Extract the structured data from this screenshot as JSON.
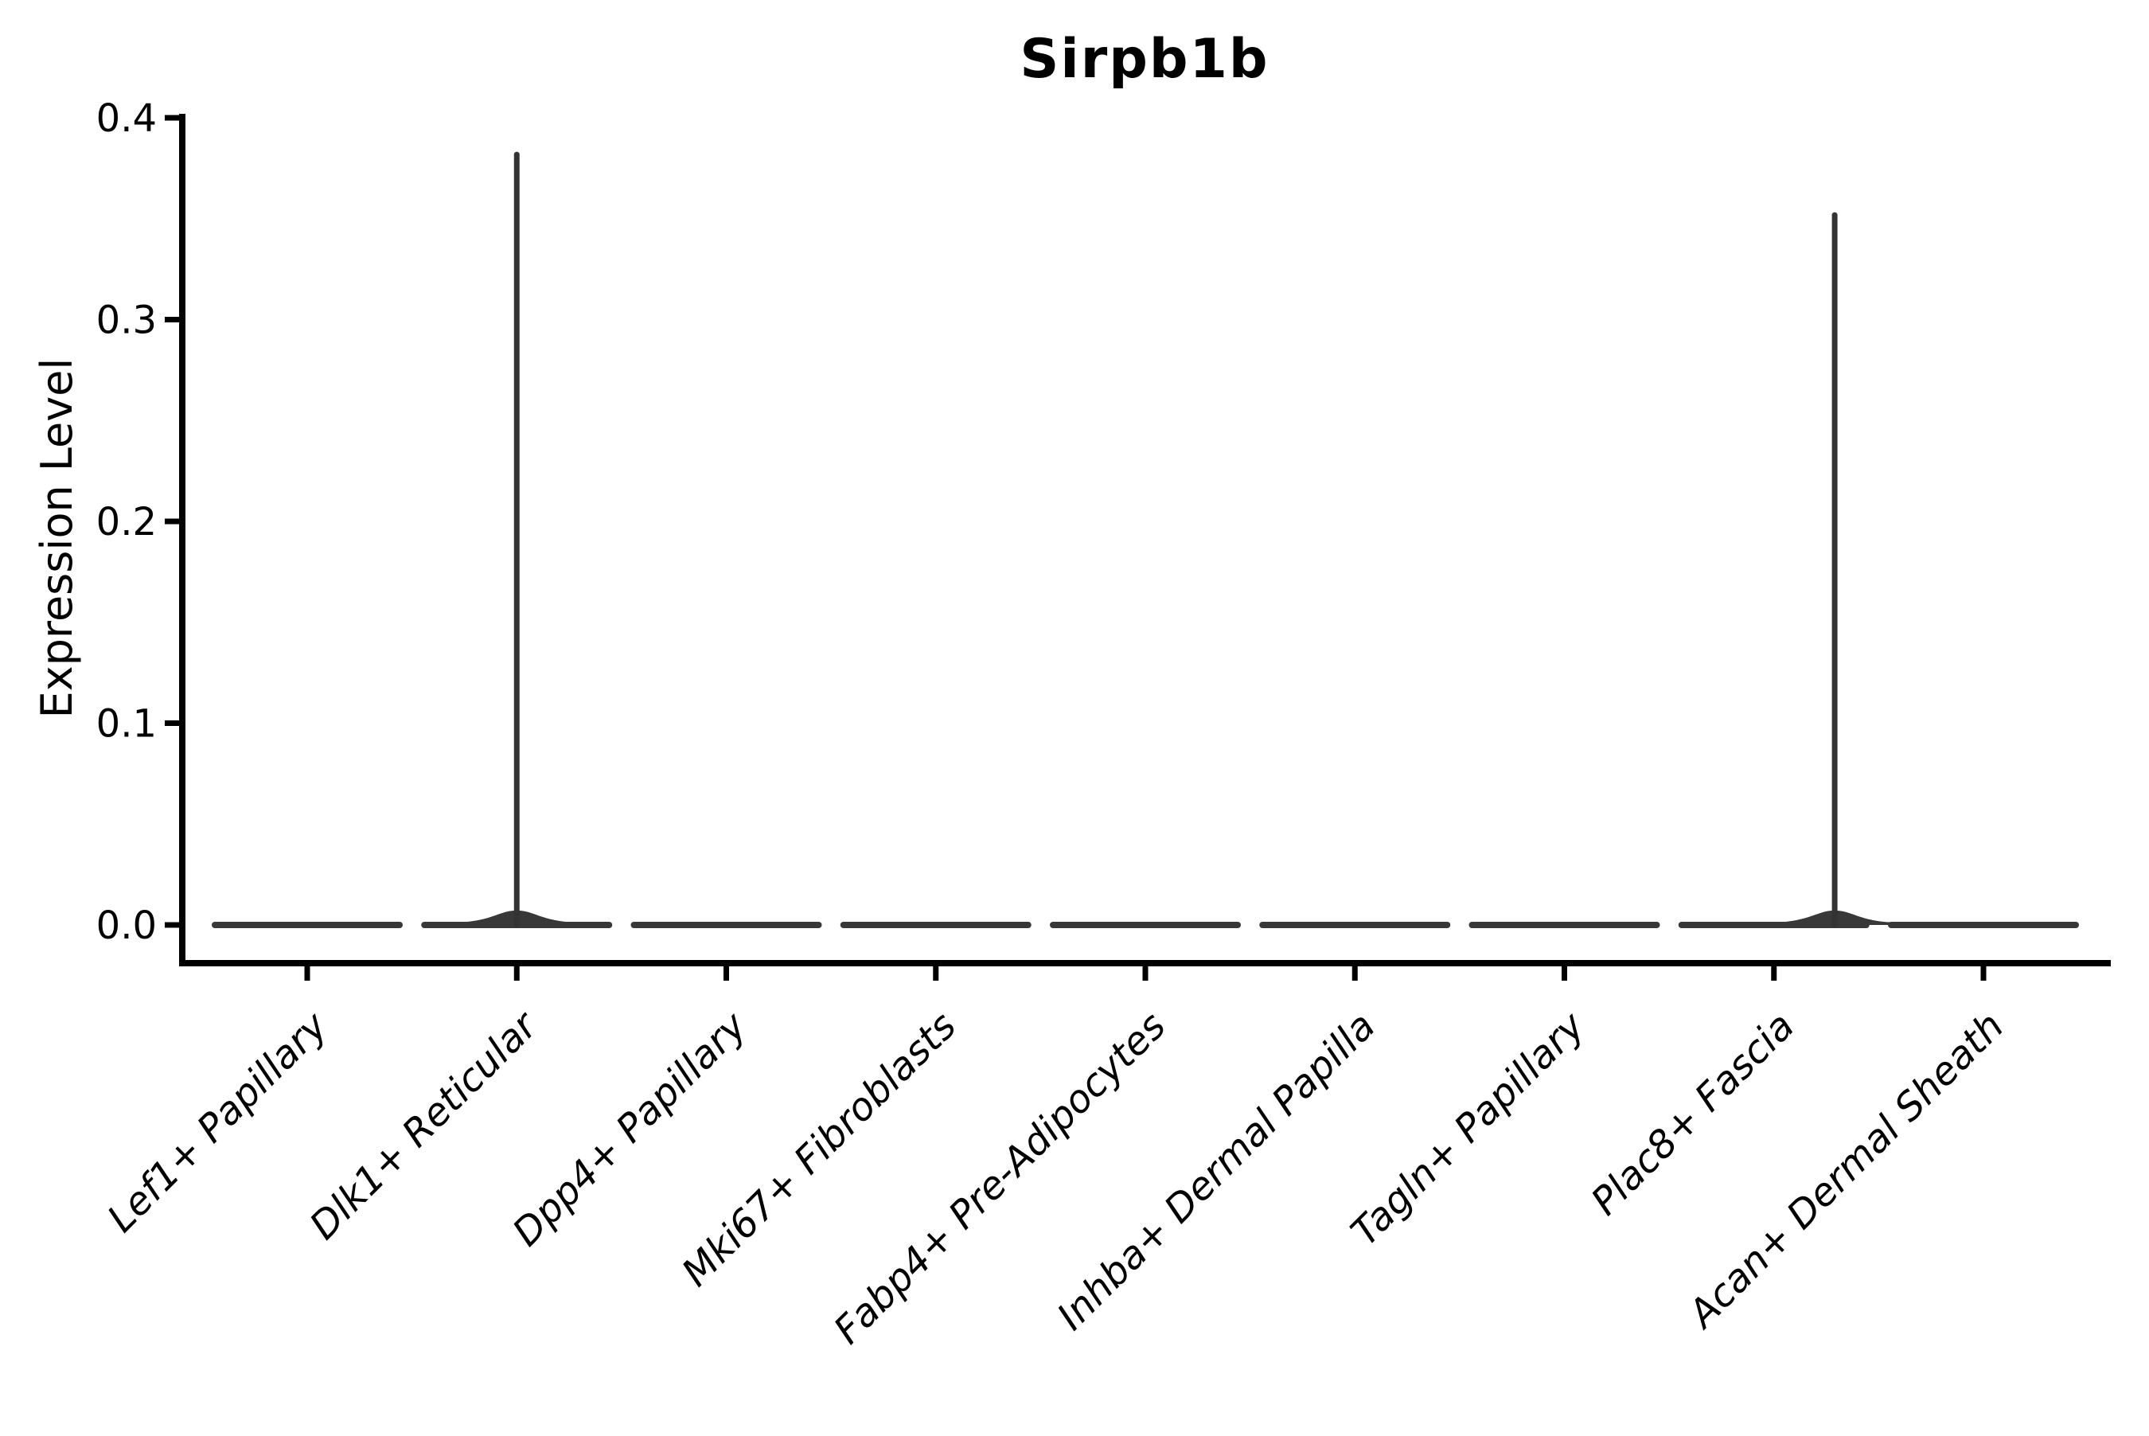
{
  "figure": {
    "title": "Sirpb1b",
    "background": "#ffffff",
    "axis_color": "#000000",
    "violin_color": "#383838",
    "spike_color": "#333333"
  },
  "chart_data": {
    "type": "violin",
    "title": "Sirpb1b",
    "xlabel": "",
    "ylabel": "Expression Level",
    "ylim": [
      0.0,
      0.4
    ],
    "yticks": [
      "0.0",
      "0.1",
      "0.2",
      "0.3",
      "0.4"
    ],
    "grid": false,
    "legend": null,
    "categories": [
      "Lef1+ Papillary",
      "Dlk1+ Reticular",
      "Dpp4+ Papillary",
      "Mki67+ Fibroblasts",
      "Fabp4+ Pre-Adipocytes",
      "Inhba+ Dermal Papilla",
      "Tagln+ Papillary",
      "Plac8+ Fascia",
      "Acan+ Dermal Sheath"
    ],
    "series": [
      {
        "name": "Lef1+ Papillary",
        "baseline_value": 0.0,
        "max_value": 0.0,
        "has_spike": false,
        "spike_offset_frac": 0
      },
      {
        "name": "Dlk1+ Reticular",
        "baseline_value": 0.0,
        "max_value": 0.383,
        "has_spike": true,
        "spike_offset_frac": 0
      },
      {
        "name": "Dpp4+ Papillary",
        "baseline_value": 0.0,
        "max_value": 0.0,
        "has_spike": false,
        "spike_offset_frac": 0
      },
      {
        "name": "Mki67+ Fibroblasts",
        "baseline_value": 0.0,
        "max_value": 0.0,
        "has_spike": false,
        "spike_offset_frac": 0
      },
      {
        "name": "Fabp4+ Pre-Adipocytes",
        "baseline_value": 0.0,
        "max_value": 0.0,
        "has_spike": false,
        "spike_offset_frac": 0
      },
      {
        "name": "Inhba+ Dermal Papilla",
        "baseline_value": 0.0,
        "max_value": 0.0,
        "has_spike": false,
        "spike_offset_frac": 0
      },
      {
        "name": "Tagln+ Papillary",
        "baseline_value": 0.0,
        "max_value": 0.0,
        "has_spike": false,
        "spike_offset_frac": 0
      },
      {
        "name": "Plac8+ Fascia",
        "baseline_value": 0.0,
        "max_value": 0.353,
        "has_spike": true,
        "spike_offset_frac": 0.29
      },
      {
        "name": "Acan+ Dermal Sheath",
        "baseline_value": 0.0,
        "max_value": 0.0,
        "has_spike": false,
        "spike_offset_frac": 0
      }
    ]
  }
}
